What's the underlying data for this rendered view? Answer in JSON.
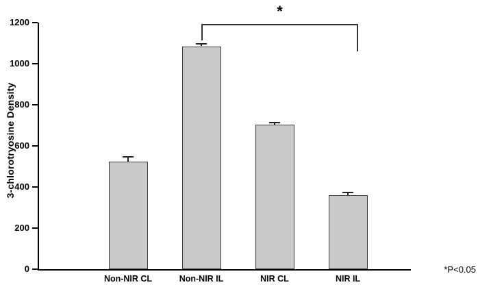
{
  "chart_data": {
    "type": "bar",
    "categories": [
      "Non-NIR CL",
      "Non-NIR IL",
      "NIR CL",
      "NIR IL"
    ],
    "values": [
      525,
      1085,
      705,
      360
    ],
    "errors": [
      20,
      7,
      6,
      10
    ],
    "title": "",
    "xlabel": "",
    "ylabel": "3-chlorotryosine Density",
    "ylim": [
      0,
      1200
    ],
    "yticks": [
      0,
      200,
      400,
      600,
      800,
      1000,
      1200
    ],
    "grid": false,
    "legend": null,
    "bar_fill": "#c9c9c9",
    "bar_border": "#3c3c3c",
    "significance": {
      "symbol": "*",
      "from": "Non-NIR IL",
      "to": "NIR IL",
      "note": "*P<0.05"
    }
  }
}
